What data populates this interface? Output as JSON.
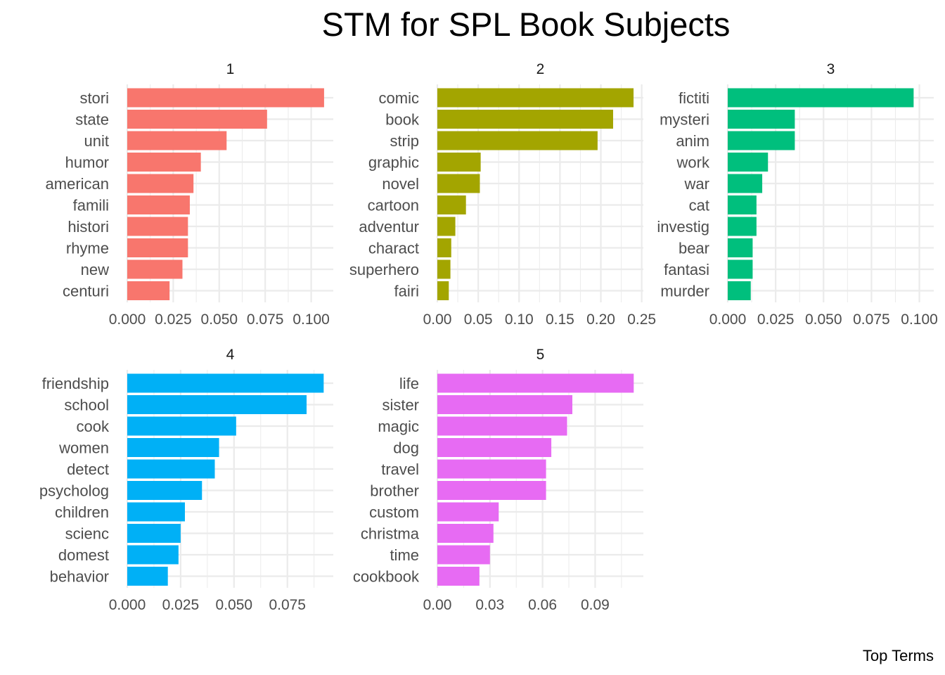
{
  "chart_data": {
    "type": "bar",
    "orientation": "horizontal",
    "title": "STM for SPL Book Subjects",
    "xlabel": "Top Terms",
    "ylabel": "",
    "grid": true,
    "legend": "none",
    "panels": [
      {
        "label": "1",
        "color": "#F8766D",
        "xlim": [
          0,
          0.112
        ],
        "ticks": [
          0.0,
          0.025,
          0.05,
          0.075,
          0.1
        ],
        "tick_labels": [
          "0.000",
          "0.025",
          "0.050",
          "0.075",
          "0.100"
        ],
        "categories": [
          "stori",
          "state",
          "unit",
          "humor",
          "american",
          "famili",
          "histori",
          "rhyme",
          "new",
          "centuri"
        ],
        "values": [
          0.107,
          0.076,
          0.054,
          0.04,
          0.036,
          0.034,
          0.033,
          0.033,
          0.03,
          0.023
        ]
      },
      {
        "label": "2",
        "color": "#A3A500",
        "xlim": [
          0,
          0.252
        ],
        "ticks": [
          0.0,
          0.05,
          0.1,
          0.15,
          0.2,
          0.25
        ],
        "tick_labels": [
          "0.00",
          "0.05",
          "0.10",
          "0.15",
          "0.20",
          "0.25"
        ],
        "categories": [
          "comic",
          "book",
          "strip",
          "graphic",
          "novel",
          "cartoon",
          "adventur",
          "charact",
          "superhero",
          "fairi"
        ],
        "values": [
          0.24,
          0.215,
          0.196,
          0.053,
          0.052,
          0.035,
          0.022,
          0.017,
          0.016,
          0.014
        ]
      },
      {
        "label": "3",
        "color": "#00BF7D",
        "xlim": [
          0,
          0.1075
        ],
        "ticks": [
          0.0,
          0.025,
          0.05,
          0.075,
          0.1
        ],
        "tick_labels": [
          "0.000",
          "0.025",
          "0.050",
          "0.075",
          "0.100"
        ],
        "categories": [
          "fictiti",
          "mysteri",
          "anim",
          "work",
          "war",
          "cat",
          "investig",
          "bear",
          "fantasi",
          "murder"
        ],
        "values": [
          0.097,
          0.035,
          0.035,
          0.021,
          0.018,
          0.015,
          0.015,
          0.013,
          0.013,
          0.012
        ]
      },
      {
        "label": "4",
        "color": "#00B0F6",
        "xlim": [
          0,
          0.0965
        ],
        "ticks": [
          0.0,
          0.025,
          0.05,
          0.075
        ],
        "tick_labels": [
          "0.000",
          "0.025",
          "0.050",
          "0.075"
        ],
        "categories": [
          "friendship",
          "school",
          "cook",
          "women",
          "detect",
          "psycholog",
          "children",
          "scienc",
          "domest",
          "behavior"
        ],
        "values": [
          0.092,
          0.084,
          0.051,
          0.043,
          0.041,
          0.035,
          0.027,
          0.025,
          0.024,
          0.019
        ]
      },
      {
        "label": "5",
        "color": "#E76BF3",
        "xlim": [
          0,
          0.1175
        ],
        "ticks": [
          0.0,
          0.03,
          0.06,
          0.09
        ],
        "tick_labels": [
          "0.00",
          "0.03",
          "0.06",
          "0.09"
        ],
        "categories": [
          "life",
          "sister",
          "magic",
          "dog",
          "travel",
          "brother",
          "custom",
          "christma",
          "time",
          "cookbook"
        ],
        "values": [
          0.112,
          0.077,
          0.074,
          0.065,
          0.062,
          0.062,
          0.035,
          0.032,
          0.03,
          0.024
        ]
      }
    ]
  }
}
